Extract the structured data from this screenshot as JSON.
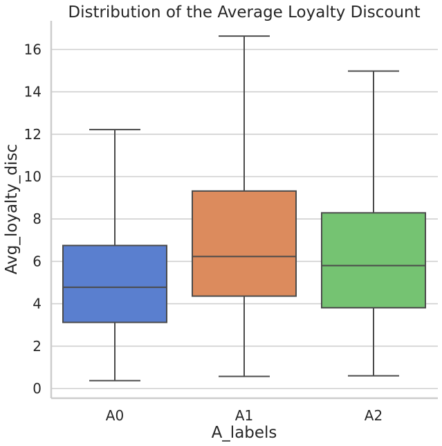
{
  "chart_data": {
    "type": "box",
    "title": "Distribution of the Average Loyalty Discount",
    "xlabel": "A_labels",
    "ylabel": "Avg_loyalty_disc",
    "categories": [
      "A0",
      "A1",
      "A2"
    ],
    "yticks": [
      "0",
      "2",
      "4",
      "6",
      "8",
      "10",
      "12",
      "14",
      "16"
    ],
    "ylim": [
      -0.45,
      17.4
    ],
    "grid": "horizontal",
    "boxes": [
      {
        "label": "A0",
        "whisker_low": 0.37,
        "q1": 3.12,
        "median": 4.78,
        "q3": 6.75,
        "whisker_high": 12.22,
        "color": "#5a7fcf"
      },
      {
        "label": "A1",
        "whisker_low": 0.57,
        "q1": 4.36,
        "median": 6.23,
        "q3": 9.32,
        "whisker_high": 16.63,
        "color": "#dc8b5d"
      },
      {
        "label": "A2",
        "whisker_low": 0.6,
        "q1": 3.81,
        "median": 5.8,
        "q3": 8.29,
        "whisker_high": 14.98,
        "color": "#75c372"
      }
    ]
  }
}
